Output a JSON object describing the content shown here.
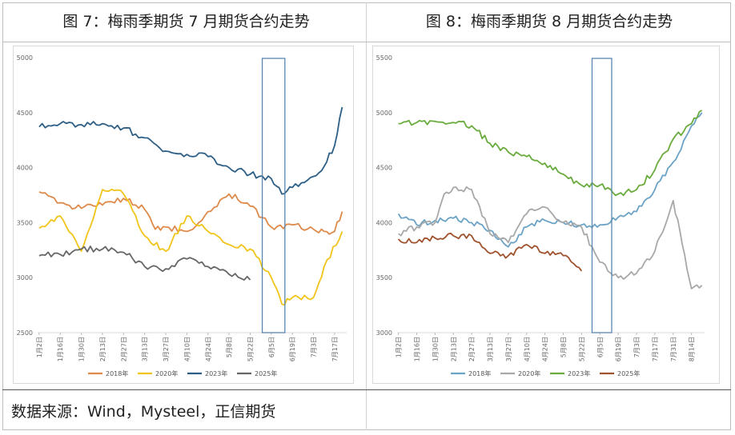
{
  "page": {
    "title_left": "图 7：梅雨季期货 7 月期货合约走势",
    "title_right": "图 8：梅雨季期货 8 月期货合约走势",
    "source": "数据来源：Wind，Mysteel，正信期货"
  },
  "colors": {
    "2018": "#de8a4a",
    "2020": "#f0c419",
    "2023": "#2d5f86",
    "2025": "#666666",
    "2018_fig8": "#6ba3c7",
    "2020_fig8": "#a8a8a8",
    "2023_fig8": "#6aab3d",
    "2025_fig8": "#a0522d",
    "highlight_box": "#5a86b0"
  },
  "chart_data": [
    {
      "type": "line",
      "ylim": [
        2500,
        5000
      ],
      "yticks": [
        2500,
        3000,
        3500,
        4000,
        4500,
        5000
      ],
      "x_ticks": [
        "1月2日",
        "1月16日",
        "1月30日",
        "2月13日",
        "2月27日",
        "3月13日",
        "3月27日",
        "4月10日",
        "4月24日",
        "5月8日",
        "5月22日",
        "6月5日",
        "6月19日",
        "7月3日",
        "7月17日"
      ],
      "x_range_days": [
        1,
        206
      ],
      "highlight_x_days": [
        150,
        165
      ],
      "legend": [
        "2018年",
        "2020年",
        "2023年",
        "2025年"
      ],
      "legend_position": "bottom",
      "grid": false,
      "series": [
        {
          "name": "2018年",
          "x": [
            "1月2日",
            "1月16日",
            "1月30日",
            "2月13日",
            "2月27日",
            "3月13日",
            "3月20日",
            "3月27日",
            "4月10日",
            "4月20日",
            "4月24日",
            "5月8日",
            "5月22日",
            "6月5日",
            "6月19日",
            "7月3日",
            "7月10日",
            "7月17日",
            "7月22日"
          ],
          "values": [
            3780,
            3680,
            3630,
            3660,
            3720,
            3620,
            3440,
            3460,
            3420,
            3520,
            3600,
            3760,
            3650,
            3460,
            3480,
            3440,
            3420,
            3420,
            3600
          ]
        },
        {
          "name": "2020年",
          "x": [
            "1月2日",
            "1月16日",
            "1月30日",
            "2月13日",
            "2月27日",
            "3月13日",
            "3月27日",
            "4月10日",
            "4月24日",
            "5月8日",
            "5月22日",
            "6月5日",
            "6月12日",
            "6月19日",
            "7月3日",
            "7月10日",
            "7月22日"
          ],
          "values": [
            3450,
            3560,
            3240,
            3800,
            3760,
            3380,
            3240,
            3560,
            3420,
            3300,
            3260,
            3000,
            2760,
            2820,
            2820,
            3100,
            3420
          ]
        },
        {
          "name": "2023年",
          "x": [
            "1月2日",
            "1月16日",
            "1月30日",
            "2月13日",
            "2月27日",
            "3月13日",
            "3月27日",
            "4月10日",
            "4月24日",
            "5月8日",
            "5月22日",
            "6月5日",
            "6月12日",
            "6月19日",
            "7月3日",
            "7月10日",
            "7月17日",
            "7月22日"
          ],
          "values": [
            4370,
            4400,
            4390,
            4400,
            4360,
            4270,
            4150,
            4120,
            4100,
            4000,
            3940,
            3900,
            3760,
            3820,
            3920,
            4010,
            4200,
            4550
          ]
        },
        {
          "name": "2025年",
          "x": [
            "1月2日",
            "1月16日",
            "1月30日",
            "2月13日",
            "2月27日",
            "3月13日",
            "3月27日",
            "4月10日",
            "4月24日",
            "5月8日",
            "5月22日"
          ],
          "values": [
            3200,
            3210,
            3260,
            3260,
            3230,
            3100,
            3080,
            3170,
            3100,
            3030,
            2980
          ]
        }
      ]
    },
    {
      "type": "line",
      "ylim": [
        3000,
        5500
      ],
      "yticks": [
        3000,
        3500,
        4000,
        4500,
        5000,
        5500
      ],
      "x_ticks": [
        "1月2日",
        "1月16日",
        "1月30日",
        "2月13日",
        "2月27日",
        "3月13日",
        "3月27日",
        "4月10日",
        "4月24日",
        "5月8日",
        "5月22日",
        "6月5日",
        "6月19日",
        "7月3日",
        "7月17日",
        "7月31日",
        "8月14日"
      ],
      "x_range_days": [
        1,
        236
      ],
      "highlight_x_days": [
        150,
        165
      ],
      "legend": [
        "2018年",
        "2020年",
        "2023年",
        "2025年"
      ],
      "legend_position": "bottom",
      "grid": false,
      "series": [
        {
          "name": "2018年",
          "x": [
            "1月2日",
            "1月16日",
            "1月30日",
            "2月13日",
            "2月27日",
            "3月13日",
            "3月27日",
            "4月10日",
            "4月24日",
            "5月8日",
            "5月22日",
            "6月5日",
            "6月19日",
            "7月3日",
            "7月17日",
            "7月31日",
            "8月14日",
            "8月22日"
          ],
          "values": [
            4080,
            3980,
            4020,
            4040,
            4000,
            3930,
            3780,
            3960,
            4020,
            4000,
            3980,
            3980,
            4050,
            4100,
            4300,
            4550,
            4880,
            5000
          ]
        },
        {
          "name": "2020年",
          "x": [
            "1月2日",
            "1月16日",
            "1月30日",
            "2月6日",
            "2月13日",
            "2月27日",
            "3月13日",
            "3月27日",
            "4月10日",
            "4月24日",
            "5月8日",
            "5月22日",
            "6月5日",
            "6月19日",
            "7月3日",
            "7月17日",
            "7月31日",
            "8月7日",
            "8月14日",
            "8月22日"
          ],
          "values": [
            3900,
            3960,
            4000,
            4260,
            4320,
            4300,
            3900,
            3820,
            4080,
            4140,
            4000,
            3960,
            3640,
            3500,
            3540,
            3740,
            4200,
            3800,
            3400,
            3430
          ]
        },
        {
          "name": "2023年",
          "x": [
            "1月2日",
            "1月16日",
            "1月30日",
            "2月13日",
            "2月27日",
            "3月13日",
            "3月27日",
            "4月10日",
            "4月24日",
            "5月8日",
            "5月22日",
            "6月5日",
            "6月19日",
            "7月3日",
            "7月17日",
            "7月31日",
            "8月14日",
            "8月22日"
          ],
          "values": [
            4900,
            4910,
            4920,
            4910,
            4880,
            4720,
            4640,
            4600,
            4540,
            4440,
            4340,
            4340,
            4260,
            4300,
            4480,
            4760,
            4900,
            5020
          ]
        },
        {
          "name": "2025年",
          "x": [
            "1月2日",
            "1月16日",
            "1月30日",
            "2月13日",
            "2月27日",
            "3月13日",
            "3月27日",
            "4月10日",
            "4月24日",
            "5月8日",
            "5月22日"
          ],
          "values": [
            3850,
            3820,
            3860,
            3880,
            3880,
            3720,
            3700,
            3800,
            3720,
            3700,
            3560
          ]
        }
      ]
    }
  ]
}
